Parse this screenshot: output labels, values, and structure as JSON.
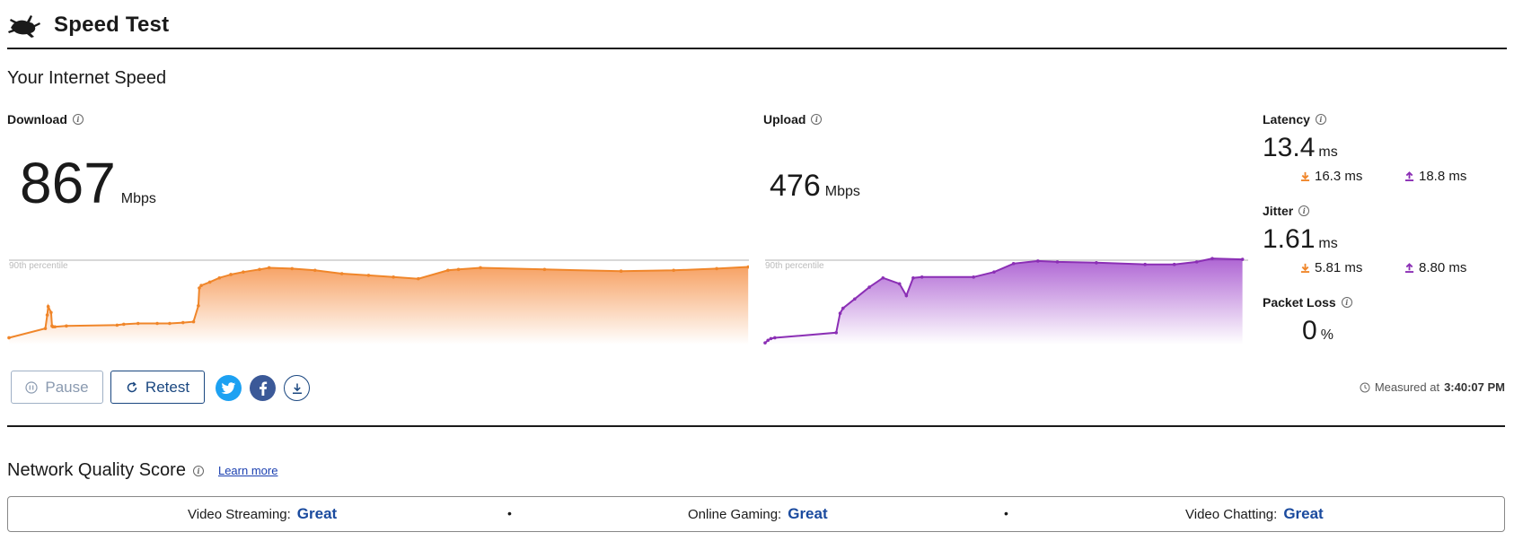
{
  "app": {
    "title": "Speed Test",
    "logo_icon": "rabbit-logo-icon"
  },
  "section": {
    "title": "Your Internet Speed"
  },
  "download": {
    "label": "Download",
    "value": "867",
    "unit": "Mbps",
    "percentile_label": "90th percentile",
    "color": "#f0862a",
    "samples": [
      [
        0,
        8
      ],
      [
        38,
        19
      ],
      [
        40,
        35
      ],
      [
        41,
        45
      ],
      [
        44,
        38
      ],
      [
        45,
        22
      ],
      [
        46,
        21
      ],
      [
        48,
        21
      ],
      [
        60,
        22
      ],
      [
        113,
        23
      ],
      [
        120,
        24
      ],
      [
        135,
        25
      ],
      [
        155,
        25
      ],
      [
        168,
        25
      ],
      [
        182,
        26
      ],
      [
        193,
        27
      ],
      [
        198,
        46
      ],
      [
        199,
        67
      ],
      [
        201,
        70
      ],
      [
        210,
        74
      ],
      [
        220,
        79
      ],
      [
        232,
        83
      ],
      [
        245,
        86
      ],
      [
        262,
        89
      ],
      [
        272,
        91
      ],
      [
        296,
        90
      ],
      [
        320,
        88
      ],
      [
        348,
        84
      ],
      [
        376,
        82
      ],
      [
        402,
        80
      ],
      [
        428,
        78
      ],
      [
        459,
        88
      ],
      [
        470,
        89
      ],
      [
        493,
        91
      ],
      [
        560,
        89
      ],
      [
        640,
        87
      ],
      [
        695,
        88
      ],
      [
        740,
        90
      ],
      [
        773,
        92
      ]
    ]
  },
  "upload": {
    "label": "Upload",
    "value": "476",
    "unit": "Mbps",
    "percentile_label": "90th percentile",
    "color": "#8b2fb5",
    "samples": [
      [
        0,
        2
      ],
      [
        3,
        5
      ],
      [
        6,
        7
      ],
      [
        10,
        8
      ],
      [
        73,
        14
      ],
      [
        77,
        37
      ],
      [
        80,
        43
      ],
      [
        92,
        54
      ],
      [
        107,
        68
      ],
      [
        121,
        79
      ],
      [
        138,
        72
      ],
      [
        145,
        58
      ],
      [
        152,
        79
      ],
      [
        161,
        80
      ],
      [
        214,
        80
      ],
      [
        235,
        86
      ],
      [
        255,
        96
      ],
      [
        280,
        99
      ],
      [
        300,
        98
      ],
      [
        340,
        97
      ],
      [
        390,
        95
      ],
      [
        420,
        95
      ],
      [
        443,
        98
      ],
      [
        459,
        102
      ],
      [
        490,
        101
      ]
    ]
  },
  "latency": {
    "label": "Latency",
    "value": "13.4",
    "unit": "ms",
    "download": "16.3 ms",
    "upload": "18.8 ms"
  },
  "jitter": {
    "label": "Jitter",
    "value": "1.61",
    "unit": "ms",
    "download": "5.81 ms",
    "upload": "8.80 ms"
  },
  "packet_loss": {
    "label": "Packet Loss",
    "value": "0",
    "unit": "%"
  },
  "controls": {
    "pause_label": "Pause",
    "retest_label": "Retest"
  },
  "share": {
    "twitter_icon": "twitter-icon",
    "facebook_icon": "facebook-icon",
    "download_icon": "download-results-icon"
  },
  "measured": {
    "prefix": "Measured at",
    "time": "3:40:07 PM"
  },
  "network_quality": {
    "title": "Network Quality Score",
    "learn_more": "Learn more",
    "items": [
      {
        "label": "Video Streaming:",
        "value": "Great"
      },
      {
        "label": "Online Gaming:",
        "value": "Great"
      },
      {
        "label": "Video Chatting:",
        "value": "Great"
      }
    ],
    "separator": "•",
    "value_color": "#1a4a9e"
  }
}
